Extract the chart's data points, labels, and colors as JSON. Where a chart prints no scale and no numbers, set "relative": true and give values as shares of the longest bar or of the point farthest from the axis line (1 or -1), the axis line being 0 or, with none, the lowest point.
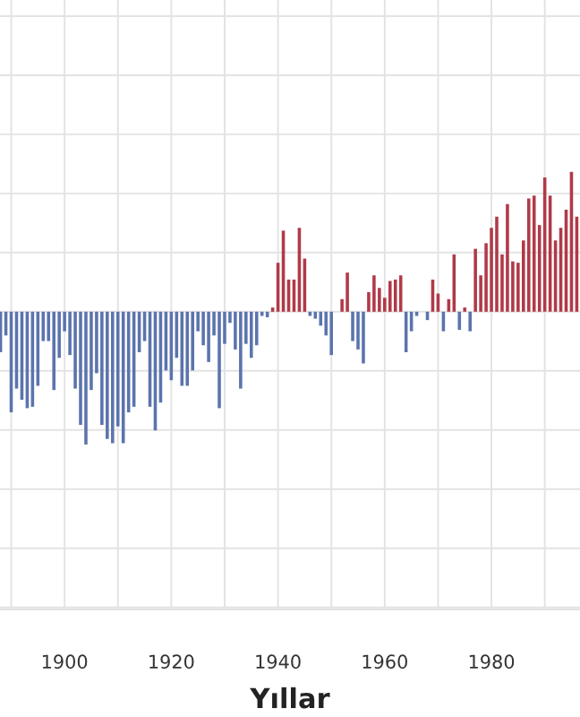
{
  "chart_data": {
    "type": "bar",
    "xlabel": "Yıllar",
    "relative": true,
    "grid": true,
    "tick_labels": "x",
    "xlim": [
      1887.9,
      1996.6
    ],
    "xticks": [
      {
        "value": 1890,
        "label": null
      },
      1900,
      {
        "value": 1910,
        "label": null
      },
      1920,
      {
        "value": 1930,
        "label": null
      },
      1940,
      {
        "value": 1950,
        "label": null
      },
      1960,
      {
        "value": 1970,
        "label": null
      },
      1980,
      {
        "value": 1990,
        "label": null
      }
    ],
    "x": [
      1888,
      1889,
      1890,
      1891,
      1892,
      1893,
      1894,
      1895,
      1896,
      1897,
      1898,
      1899,
      1900,
      1901,
      1902,
      1903,
      1904,
      1905,
      1906,
      1907,
      1908,
      1909,
      1910,
      1911,
      1912,
      1913,
      1914,
      1915,
      1916,
      1917,
      1918,
      1919,
      1920,
      1921,
      1922,
      1923,
      1924,
      1925,
      1926,
      1927,
      1928,
      1929,
      1930,
      1931,
      1932,
      1933,
      1934,
      1935,
      1936,
      1937,
      1938,
      1939,
      1940,
      1941,
      1942,
      1943,
      1944,
      1945,
      1946,
      1947,
      1948,
      1949,
      1950,
      1951,
      1952,
      1953,
      1954,
      1955,
      1956,
      1957,
      1958,
      1959,
      1960,
      1961,
      1962,
      1963,
      1964,
      1965,
      1966,
      1967,
      1968,
      1969,
      1970,
      1971,
      1972,
      1973,
      1974,
      1975,
      1976,
      1977,
      1978,
      1979,
      1980,
      1981,
      1982,
      1983,
      1984,
      1985,
      1986,
      1987,
      1988,
      1989,
      1990,
      1991,
      1992,
      1993,
      1994,
      1995,
      1996
    ],
    "values": [
      -0.29,
      -0.17,
      -0.72,
      -0.55,
      -0.63,
      -0.69,
      -0.68,
      -0.53,
      -0.21,
      -0.21,
      -0.56,
      -0.33,
      -0.14,
      -0.31,
      -0.55,
      -0.81,
      -0.95,
      -0.56,
      -0.44,
      -0.81,
      -0.91,
      -0.94,
      -0.82,
      -0.94,
      -0.72,
      -0.68,
      -0.29,
      -0.21,
      -0.68,
      -0.85,
      -0.65,
      -0.42,
      -0.49,
      -0.33,
      -0.53,
      -0.53,
      -0.42,
      -0.14,
      -0.24,
      -0.36,
      -0.17,
      -0.69,
      -0.23,
      -0.08,
      -0.27,
      -0.55,
      -0.23,
      -0.33,
      -0.24,
      -0.03,
      -0.04,
      0.03,
      0.35,
      0.58,
      0.23,
      0.23,
      0.6,
      0.38,
      -0.03,
      -0.05,
      -0.1,
      -0.17,
      -0.31,
      0,
      0.09,
      0.28,
      -0.21,
      -0.27,
      -0.37,
      0.14,
      0.26,
      0.17,
      0.1,
      0.22,
      0.23,
      0.26,
      -0.29,
      -0.14,
      -0.03,
      0,
      -0.06,
      0.23,
      0.13,
      -0.14,
      0.09,
      0.41,
      -0.13,
      0.03,
      -0.14,
      0.45,
      0.26,
      0.49,
      0.6,
      0.68,
      0.41,
      0.77,
      0.36,
      0.35,
      0.51,
      0.81,
      0.83,
      0.62,
      0.96,
      0.83,
      0.51,
      0.6,
      0.73,
      1,
      0.68
    ],
    "colors": [
      "#5b74ad",
      "#5b74ad",
      "#5b74ad",
      "#5b74ad",
      "#5b74ad",
      "#5b74ad",
      "#5b74ad",
      "#5b74ad",
      "#5b74ad",
      "#5b74ad",
      "#5b74ad",
      "#5b74ad",
      "#5b74ad",
      "#5b74ad",
      "#5b74ad",
      "#5b74ad",
      "#5b74ad",
      "#5b74ad",
      "#5b74ad",
      "#5b74ad",
      "#5b74ad",
      "#5b74ad",
      "#5b74ad",
      "#5b74ad",
      "#5b74ad",
      "#5b74ad",
      "#5b74ad",
      "#5b74ad",
      "#5b74ad",
      "#5b74ad",
      "#5b74ad",
      "#5b74ad",
      "#5b74ad",
      "#5b74ad",
      "#5b74ad",
      "#5b74ad",
      "#5b74ad",
      "#5b74ad",
      "#5b74ad",
      "#5b74ad",
      "#5b74ad",
      "#5b74ad",
      "#5b74ad",
      "#5b74ad",
      "#5b74ad",
      "#5b74ad",
      "#5b74ad",
      "#5b74ad",
      "#5b74ad",
      "#5b74ad",
      "#5b74ad",
      "#b03a48",
      "#b03a48",
      "#b03a48",
      "#b03a48",
      "#b03a48",
      "#b03a48",
      "#b03a48",
      "#5b74ad",
      "#5b74ad",
      "#5b74ad",
      "#5b74ad",
      "#5b74ad",
      "#5b74ad",
      "#b03a48",
      "#b03a48",
      "#5b74ad",
      "#5b74ad",
      "#5b74ad",
      "#b03a48",
      "#b03a48",
      "#b03a48",
      "#b03a48",
      "#b03a48",
      "#b03a48",
      "#b03a48",
      "#5b74ad",
      "#5b74ad",
      "#5b74ad",
      "#5b74ad",
      "#5b74ad",
      "#b03a48",
      "#b03a48",
      "#5b74ad",
      "#b03a48",
      "#b03a48",
      "#5b74ad",
      "#b03a48",
      "#5b74ad",
      "#b03a48",
      "#b03a48",
      "#b03a48",
      "#b03a48",
      "#b03a48",
      "#b03a48",
      "#b03a48",
      "#b03a48",
      "#b03a48",
      "#b03a48",
      "#b03a48",
      "#b03a48",
      "#b03a48",
      "#b03a48",
      "#b03a48",
      "#b03a48",
      "#b03a48",
      "#b03a48",
      "#b03a48",
      "#b03a48"
    ]
  }
}
